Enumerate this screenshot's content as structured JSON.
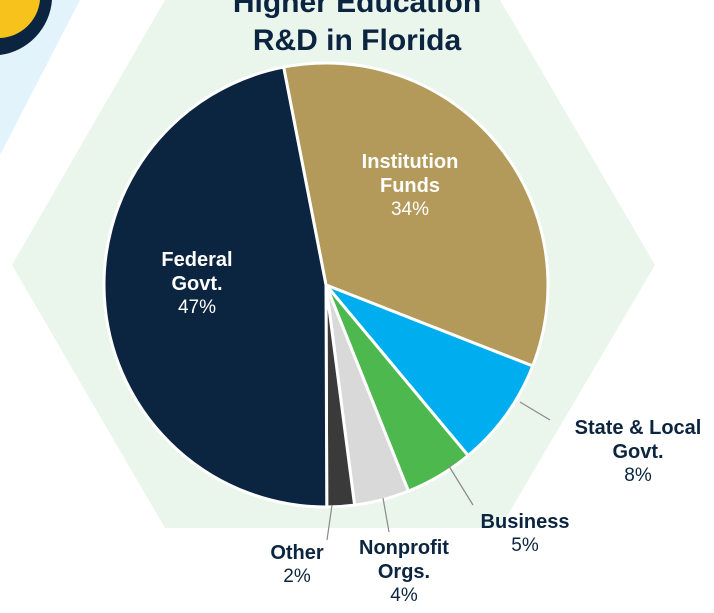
{
  "chart_data": {
    "type": "pie",
    "title": "Higher Education R&D in Florida",
    "categories": [
      "Institution Funds",
      "State & Local Govt.",
      "Business",
      "Nonprofit Orgs.",
      "Other",
      "Federal Govt."
    ],
    "values": [
      34,
      8,
      5,
      4,
      2,
      47
    ],
    "value_labels": [
      "34%",
      "8%",
      "5%",
      "4%",
      "2%",
      "47%"
    ],
    "colors": [
      "#b39a5a",
      "#00aeef",
      "#4cb84e",
      "#d9d9d9",
      "#3a3a3a",
      "#0b2440"
    ]
  }
}
